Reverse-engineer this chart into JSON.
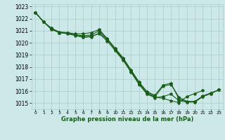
{
  "xlabel": "Graphe pression niveau de la mer (hPa)",
  "xlim": [
    -0.5,
    23.5
  ],
  "ylim": [
    1014.5,
    1023.2
  ],
  "yticks": [
    1015,
    1016,
    1017,
    1018,
    1019,
    1020,
    1021,
    1022,
    1023
  ],
  "xticks": [
    0,
    1,
    2,
    3,
    4,
    5,
    6,
    7,
    8,
    9,
    10,
    11,
    12,
    13,
    14,
    15,
    16,
    17,
    18,
    19,
    20,
    21,
    22,
    23
  ],
  "background_color": "#cce8e8",
  "grid_color": "#aacccc",
  "line_color": "#1a5c1a",
  "lines": [
    [
      1022.5,
      1021.75,
      1021.2,
      1020.9,
      1020.85,
      1020.75,
      1020.75,
      1020.85,
      1021.1,
      1020.35,
      1019.55,
      1018.75,
      1017.75,
      1016.75,
      1015.95,
      1015.65,
      1016.5,
      1016.65,
      1015.35,
      1015.1,
      1015.1,
      1015.55,
      1015.8,
      1016.1
    ],
    [
      1022.5,
      1021.75,
      1021.2,
      1020.85,
      1020.8,
      1020.65,
      1020.6,
      1020.65,
      1021.0,
      1020.3,
      1019.5,
      1018.7,
      1017.7,
      1016.7,
      1015.9,
      1015.55,
      1016.4,
      1016.55,
      1015.5,
      1015.15,
      1015.15,
      1015.6,
      1015.85,
      1016.1
    ],
    [
      1022.5,
      1021.75,
      1021.15,
      1020.85,
      1020.8,
      1020.65,
      1020.5,
      1020.55,
      1020.75,
      1020.15,
      1019.35,
      1018.55,
      1017.55,
      1016.55,
      1015.75,
      1015.45,
      1015.55,
      1015.75,
      1015.2,
      1015.1,
      1015.1,
      1015.55,
      1015.8,
      1016.1
    ],
    [
      1022.5,
      1021.75,
      1021.1,
      1020.85,
      1020.75,
      1020.6,
      1020.45,
      1020.5,
      1020.8,
      1020.3,
      1019.45,
      1018.6,
      1017.6,
      1016.6,
      1015.8,
      1015.5,
      1015.4,
      1015.2,
      1015.05,
      1015.55,
      1015.8,
      1016.05,
      null,
      null
    ]
  ]
}
